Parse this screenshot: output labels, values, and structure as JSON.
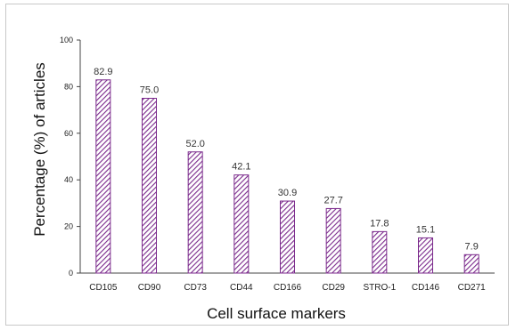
{
  "chart_data": {
    "type": "bar",
    "categories": [
      "CD105",
      "CD90",
      "CD73",
      "CD44",
      "CD166",
      "CD29",
      "STRO-1",
      "CD146",
      "CD271"
    ],
    "values": [
      82.9,
      75.0,
      52.0,
      42.1,
      30.9,
      27.7,
      17.8,
      15.1,
      7.9
    ],
    "data_labels": [
      "82.9",
      "75.0",
      "52.0",
      "42.1",
      "30.9",
      "27.7",
      "17.8",
      "15.1",
      "7.9"
    ],
    "xlabel": "Cell surface markers",
    "ylabel": "Percentage (%) of articles",
    "ylim": [
      0,
      100
    ],
    "yticks": [
      0,
      20,
      40,
      60,
      80,
      100
    ],
    "grid": false,
    "legend": "none",
    "bar_pattern": "diagonal-hatch",
    "bar_color": "#7b2a8c"
  }
}
